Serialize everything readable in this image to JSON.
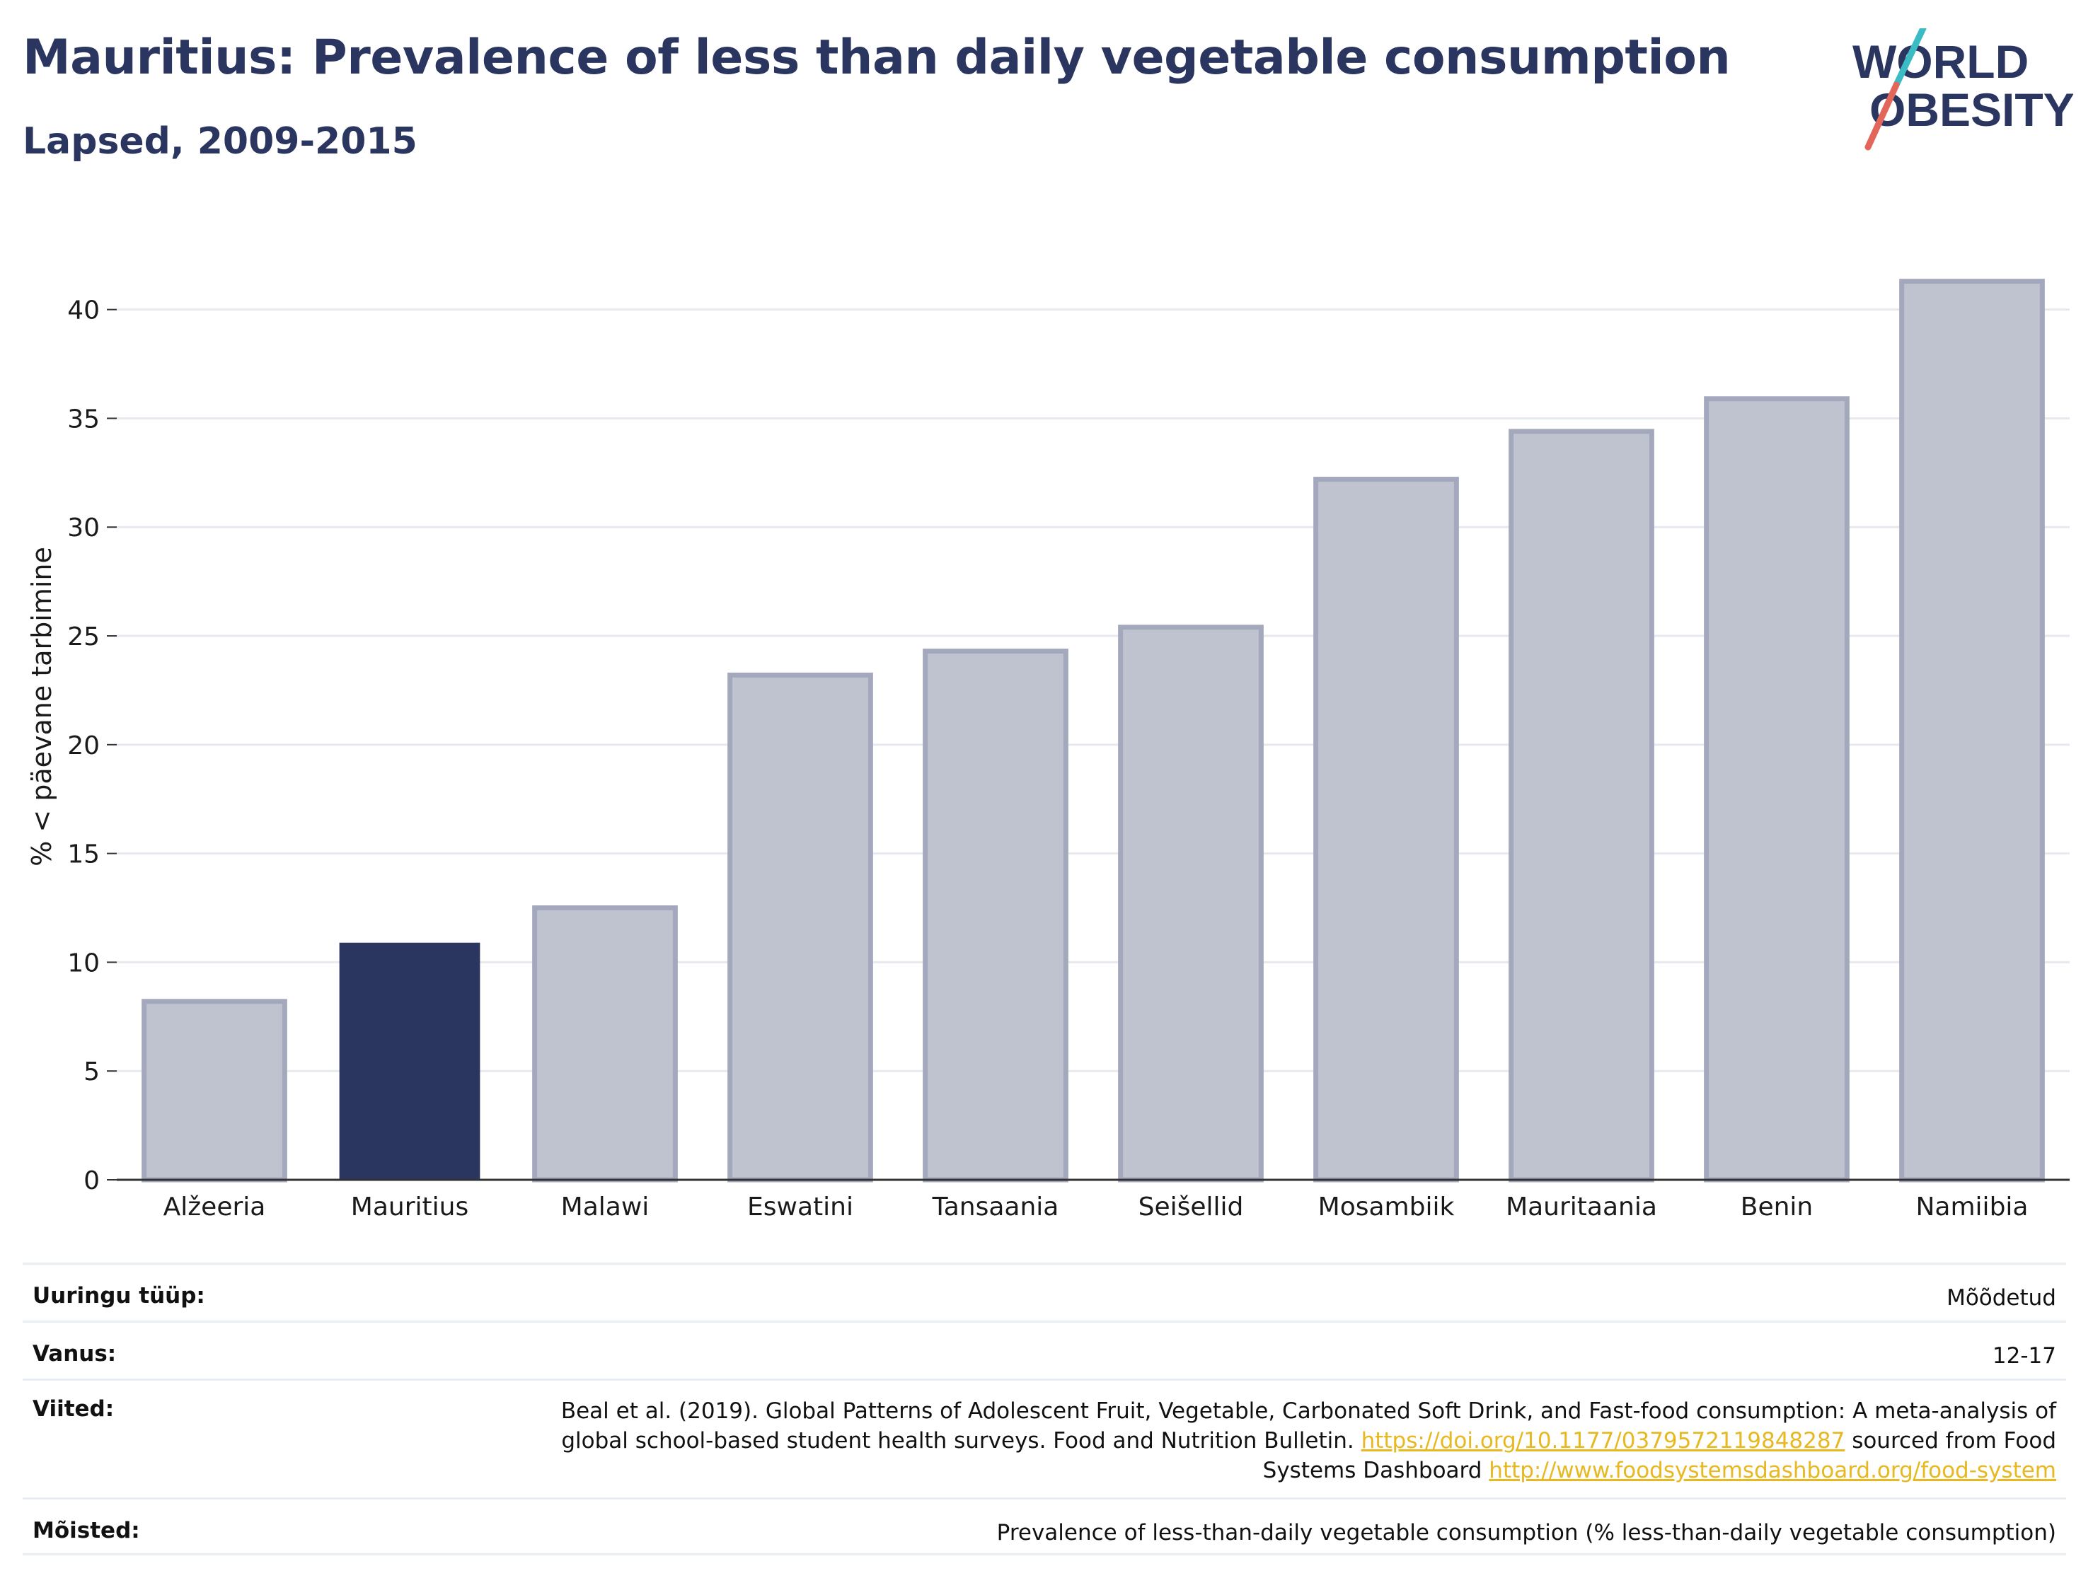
{
  "header": {
    "title": "Mauritius: Prevalence of less than daily vegetable consumption",
    "subtitle": "Lapsed, 2009-2015"
  },
  "logo": {
    "line1": "WORLD",
    "line2": "OBESITY",
    "slash_top": "#3bbcc4",
    "slash_bottom": "#e2665a"
  },
  "chart_data": {
    "type": "bar",
    "categories": [
      "Alžeeria",
      "Mauritius",
      "Malawi",
      "Eswatini",
      "Tansaania",
      "Seišellid",
      "Mosambiik",
      "Mauritaania",
      "Benin",
      "Namiibia"
    ],
    "values": [
      8.2,
      10.9,
      12.5,
      23.2,
      24.3,
      25.4,
      32.2,
      34.4,
      35.9,
      41.3
    ],
    "highlight": "Mauritius",
    "ylabel": "% < päevane tarbimine",
    "xlabel": "",
    "ylim": [
      0,
      43.5
    ],
    "yticks": [
      0,
      5,
      10,
      15,
      20,
      25,
      30,
      35,
      40
    ],
    "grid": true,
    "colors": {
      "bar": "#bfc3d0",
      "bar_border": "#a3a8bd",
      "highlight": "#2a3560",
      "grid": "#e6eaf0",
      "axis": "#333333"
    }
  },
  "meta": {
    "survey_type": {
      "label": "Uuringu tüüp:",
      "value": "Mõõdetud"
    },
    "age": {
      "label": "Vanus:",
      "value": "12-17"
    },
    "references": {
      "label": "Viited:",
      "text1": "Beal et al. (2019). Global Patterns of Adolescent Fruit, Vegetable, Carbonated Soft Drink, and Fast-food consumption: A meta-analysis of global school-based student health surveys. Food and Nutrition Bulletin.",
      "link1": "https://doi.org/10.1177/0379572119848287",
      "text2": "sourced from Food Systems Dashboard",
      "link2": "http://www.foodsystemsdashboard.org/food-system"
    },
    "definitions": {
      "label": "Mõisted:",
      "value": "Prevalence of less-than-daily vegetable consumption (% less-than-daily vegetable consumption)"
    }
  }
}
